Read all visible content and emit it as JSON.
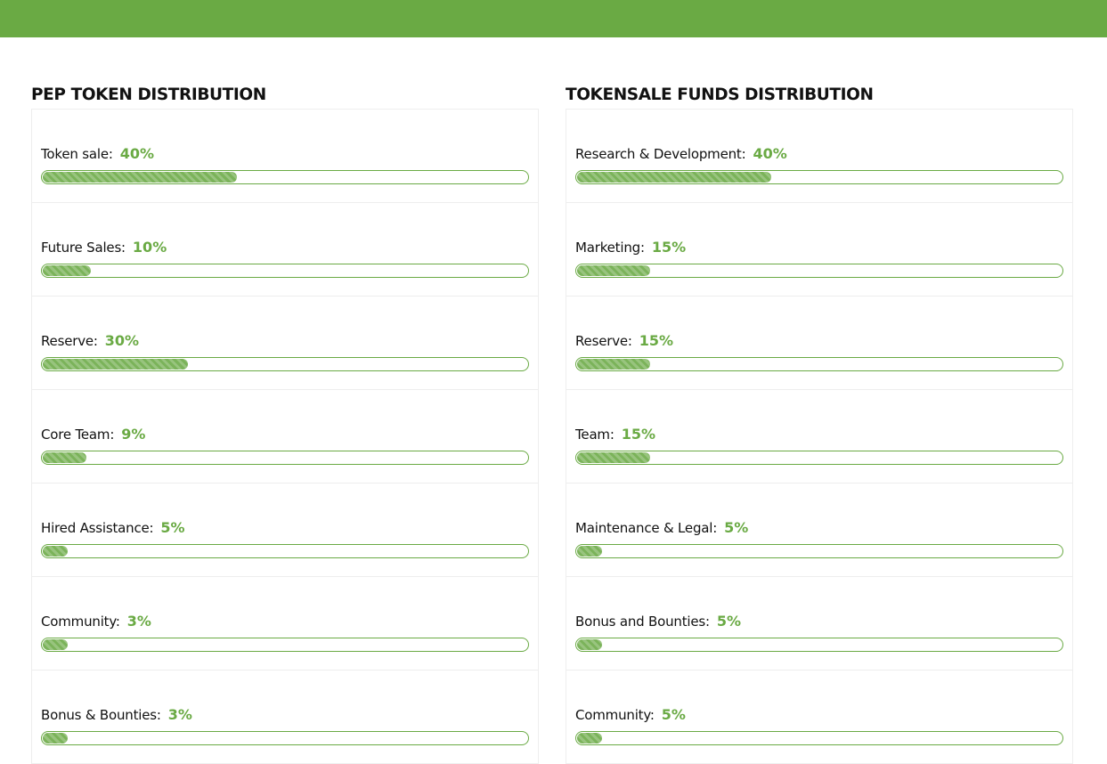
{
  "colors": {
    "accent": "#6aaa44",
    "topbar": "#6aaa44",
    "text": "#111111",
    "card_border": "#eeeeee"
  },
  "pep_token": {
    "title": "PEP TOKEN DISTRIBUTION",
    "items": [
      {
        "label": "Token sale:",
        "percent_text": "40%",
        "percent": 40
      },
      {
        "label": "Future Sales:",
        "percent_text": "10%",
        "percent": 10
      },
      {
        "label": "Reserve:",
        "percent_text": "30%",
        "percent": 30
      },
      {
        "label": "Core Team:",
        "percent_text": "9%",
        "percent": 9
      },
      {
        "label": "Hired Assistance:",
        "percent_text": "5%",
        "percent": 5
      },
      {
        "label": "Community:",
        "percent_text": "3%",
        "percent": 3
      },
      {
        "label": "Bonus & Bounties:",
        "percent_text": "3%",
        "percent": 3
      }
    ]
  },
  "tokensale_funds": {
    "title": "TOKENSALE FUNDS DISTRIBUTION",
    "items": [
      {
        "label": "Research & Development:",
        "percent_text": "40%",
        "percent": 40
      },
      {
        "label": "Marketing:",
        "percent_text": "15%",
        "percent": 15
      },
      {
        "label": "Reserve:",
        "percent_text": "15%",
        "percent": 15
      },
      {
        "label": "Team:",
        "percent_text": "15%",
        "percent": 15
      },
      {
        "label": "Maintenance & Legal:",
        "percent_text": "5%",
        "percent": 5
      },
      {
        "label": "Bonus and Bounties:",
        "percent_text": "5%",
        "percent": 5
      },
      {
        "label": "Community:",
        "percent_text": "5%",
        "percent": 5
      }
    ]
  }
}
